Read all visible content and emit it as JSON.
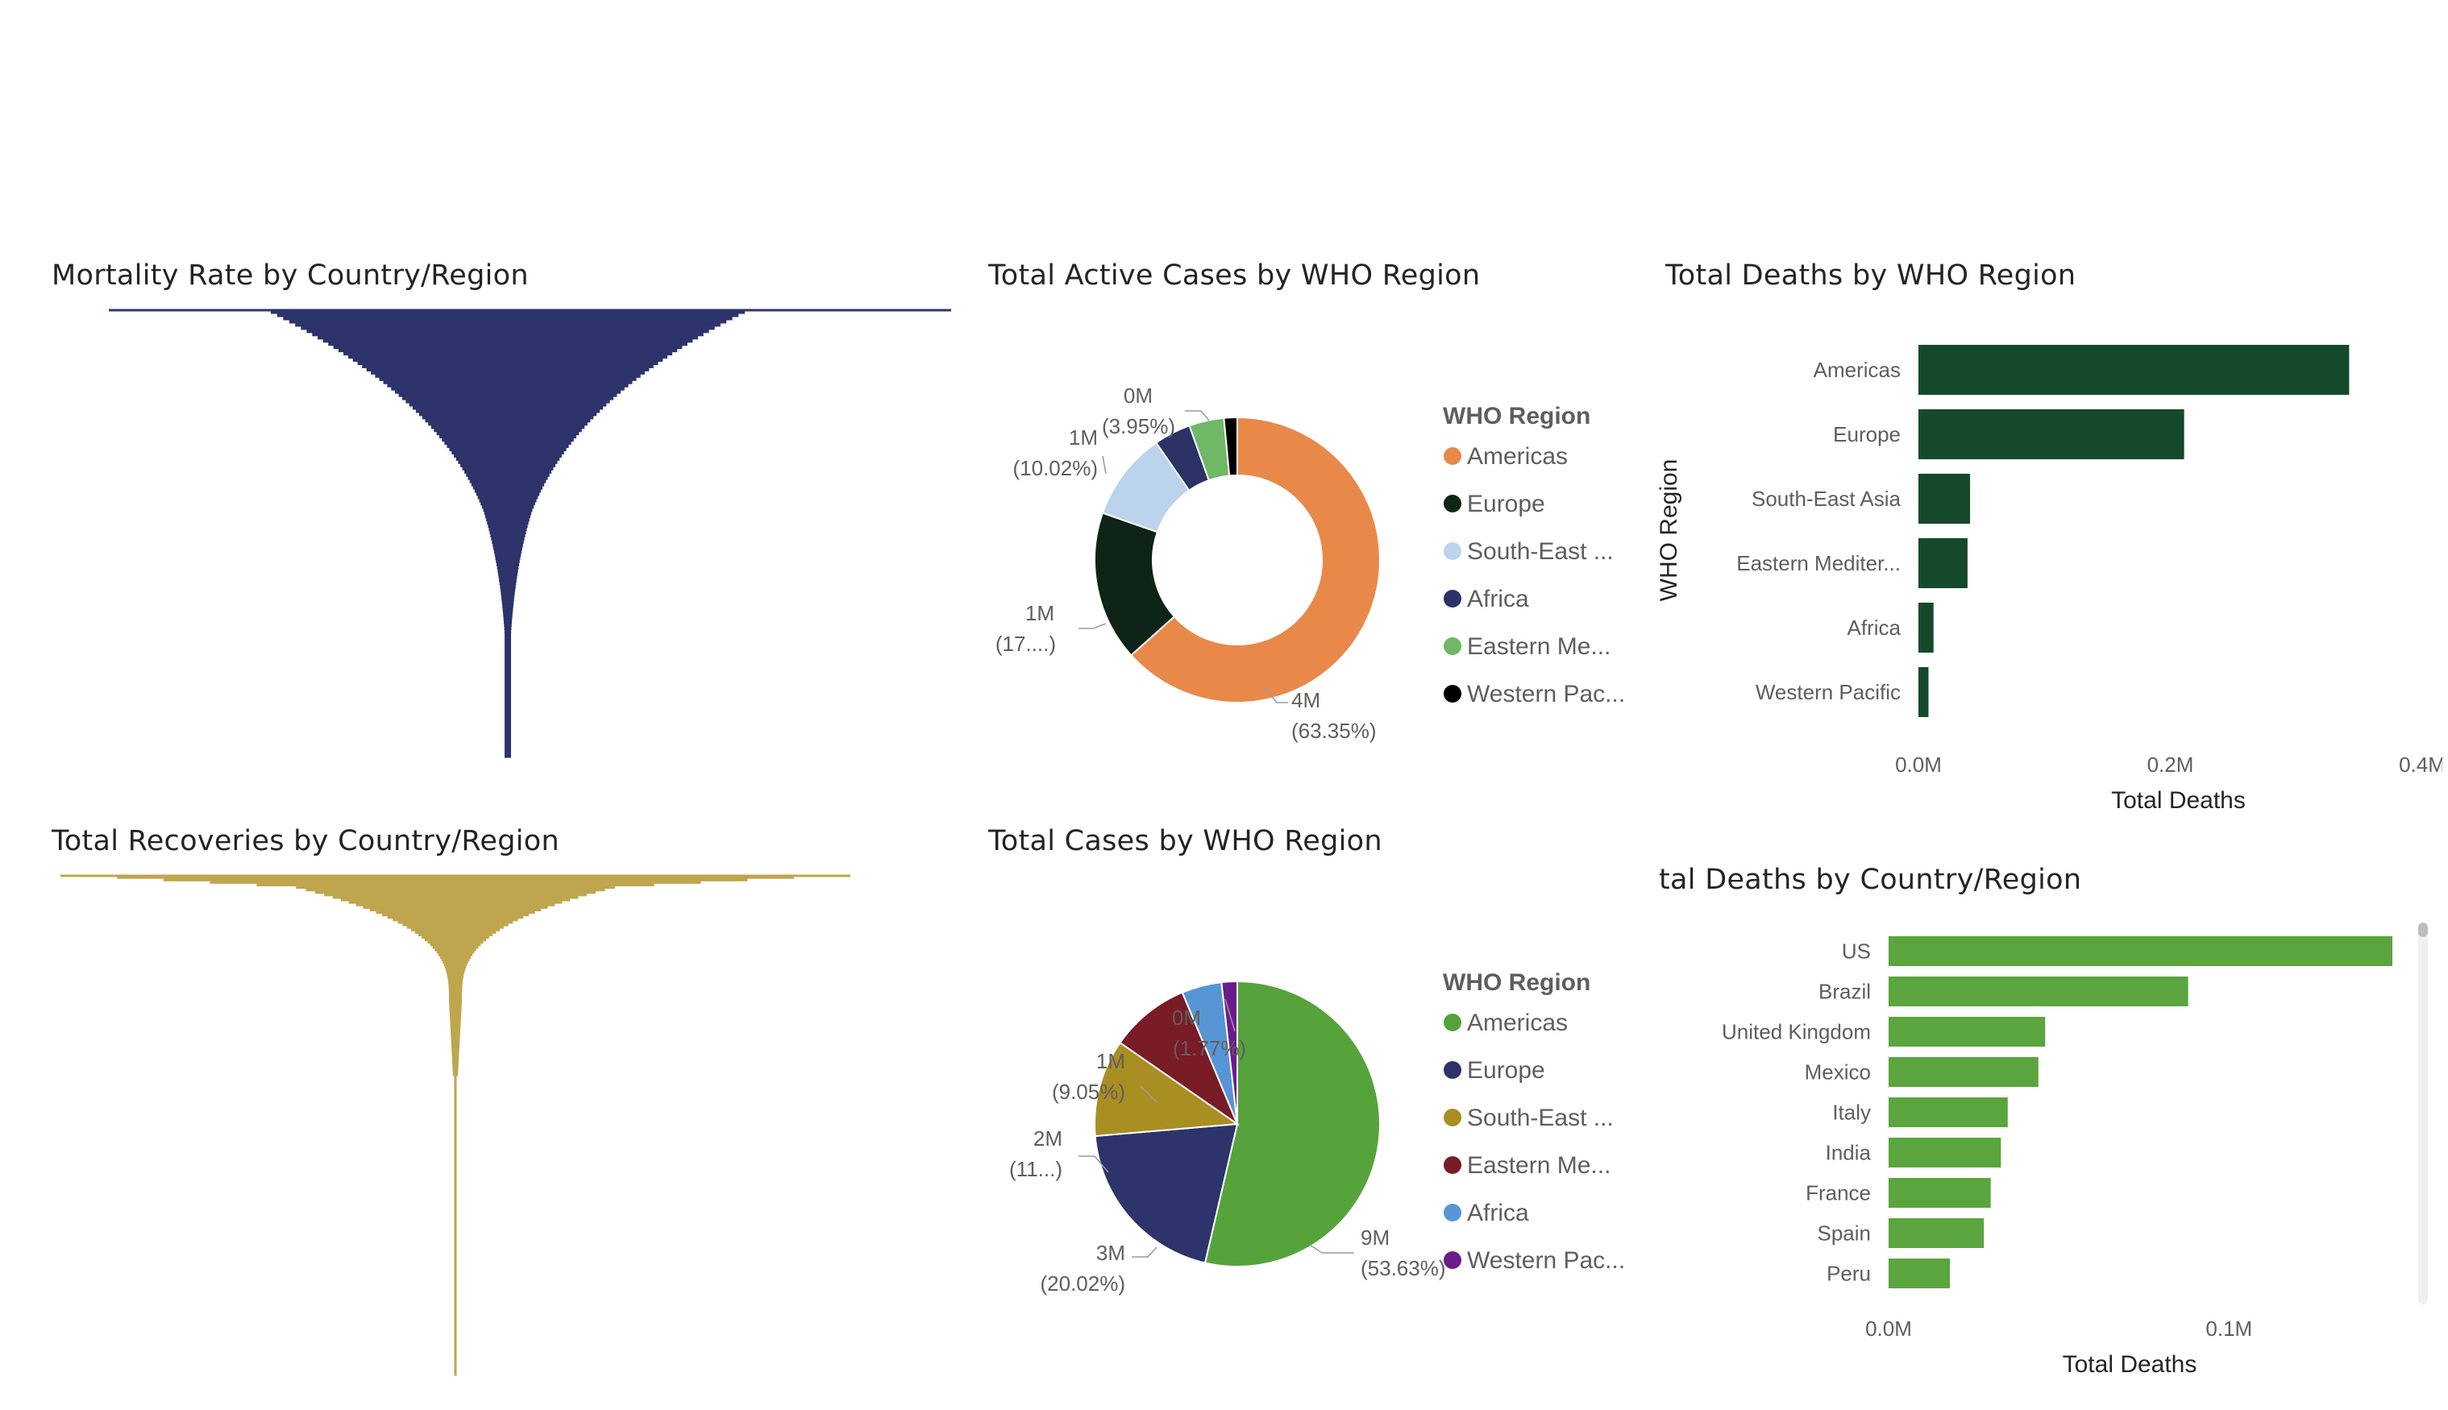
{
  "mortality": {
    "title": "Mortality Rate by Country/Region",
    "color": "#2d336b"
  },
  "recoveries": {
    "title": "Total Recoveries by Country/Region",
    "color": "#bfa64e"
  },
  "active_cases": {
    "title": "Total Active Cases by WHO Region",
    "legend_title": "WHO Region",
    "legend": [
      "Americas",
      "Europe",
      "South-East ...",
      "Africa",
      "Eastern Me...",
      "Western Pac..."
    ],
    "labels": [
      {
        "value": "4M",
        "pct": "(63.35%)"
      },
      {
        "value": "1M",
        "pct": "(17....)"
      },
      {
        "value": "1M",
        "pct": "(10.02%)"
      },
      {
        "value": "0M",
        "pct": "(3.95%)"
      }
    ]
  },
  "total_cases": {
    "title": "Total Cases by WHO Region",
    "legend_title": "WHO Region",
    "legend": [
      "Americas",
      "Europe",
      "South-East ...",
      "Eastern Me...",
      "Africa",
      "Western Pac..."
    ],
    "labels": [
      {
        "value": "9M",
        "pct": "(53.63%)"
      },
      {
        "value": "3M",
        "pct": "(20.02%)"
      },
      {
        "value": "2M",
        "pct": "(11...)"
      },
      {
        "value": "1M",
        "pct": "(9.05%)"
      },
      {
        "value": "0M",
        "pct": "(1.77%)"
      }
    ]
  },
  "deaths_region": {
    "title": "Total Deaths by WHO Region",
    "xlabel": "Total Deaths",
    "ylabel": "WHO Region",
    "ticks": [
      "0.0M",
      "0.2M",
      "0.4M"
    ],
    "categories": [
      "Americas",
      "Europe",
      "South-East Asia",
      "Eastern Mediter...",
      "Africa",
      "Western Pacific"
    ]
  },
  "deaths_country": {
    "title": "tal Deaths by Country/Region",
    "xlabel": "Total Deaths",
    "ticks": [
      "0.0M",
      "0.1M"
    ],
    "categories": [
      "US",
      "Brazil",
      "United Kingdom",
      "Mexico",
      "Italy",
      "India",
      "France",
      "Spain",
      "Peru"
    ]
  },
  "chart_data": [
    {
      "type": "area",
      "title": "Mortality Rate by Country/Region",
      "color": "#2d336b",
      "note_values": "relative mortality rate per country, sorted (funnel-shaped profile), 0-1 normalized",
      "values": [
        0.03,
        0.04,
        0.05,
        0.06,
        0.07,
        0.08,
        0.09,
        0.1,
        0.11,
        0.12,
        0.13,
        0.14,
        0.15,
        0.16,
        0.17,
        0.18,
        0.19,
        0.2,
        0.21,
        0.22,
        0.23,
        0.24,
        0.25,
        0.26,
        0.27,
        0.28,
        0.29,
        0.3,
        0.31,
        0.32,
        0.33,
        0.34,
        0.35,
        0.36,
        0.37,
        0.38,
        0.39,
        0.4,
        0.42,
        0.44,
        0.46,
        0.48,
        0.5,
        0.52,
        0.54,
        0.56,
        0.58,
        0.6,
        0.62,
        0.64,
        0.66,
        0.68,
        0.7,
        0.72,
        0.74,
        0.76,
        0.78,
        0.8,
        0.82,
        0.84,
        0.86,
        0.88,
        0.9,
        0.92,
        0.94,
        0.96,
        0.98,
        1.0
      ]
    },
    {
      "type": "area",
      "title": "Total Recoveries by Country/Region",
      "color": "#bfa64e",
      "values": [
        0.01,
        0.015,
        0.02,
        0.03,
        0.04,
        0.05,
        0.06,
        0.07,
        0.08,
        0.09,
        0.1,
        0.11,
        0.12,
        0.14,
        0.16,
        0.18,
        0.2,
        0.25,
        0.3,
        0.4,
        0.55,
        0.8,
        1.0
      ]
    },
    {
      "type": "pie",
      "title": "Total Active Cases by WHO Region",
      "donut": true,
      "categories": [
        "Americas",
        "Europe",
        "South-East Asia",
        "Africa",
        "Eastern Mediterranean",
        "Western Pacific"
      ],
      "values": [
        63.35,
        17.0,
        10.02,
        4.18,
        3.95,
        1.5
      ],
      "colors": [
        "#e8894a",
        "#0f2419",
        "#bcd3ec",
        "#2a3266",
        "#6fb866",
        "#000000"
      ]
    },
    {
      "type": "pie",
      "title": "Total Cases by WHO Region",
      "donut": false,
      "categories": [
        "Americas",
        "Europe",
        "South-East Asia",
        "Eastern Mediterranean",
        "Africa",
        "Western Pacific"
      ],
      "values": [
        53.63,
        20.02,
        11.0,
        9.05,
        4.53,
        1.77
      ],
      "colors": [
        "#56a33b",
        "#2d336b",
        "#a98e22",
        "#7a1b28",
        "#5796d4",
        "#6a1d8a"
      ]
    },
    {
      "type": "bar",
      "orientation": "horizontal",
      "title": "Total Deaths by WHO Region",
      "xlabel": "Total Deaths",
      "ylabel": "WHO Region",
      "categories": [
        "Americas",
        "Europe",
        "South-East Asia",
        "Eastern Mediterranean",
        "Africa",
        "Western Pacific"
      ],
      "values": [
        342000,
        211000,
        41000,
        39000,
        12000,
        8000
      ],
      "xlim": [
        0,
        400000
      ],
      "color": "#15492b"
    },
    {
      "type": "bar",
      "orientation": "horizontal",
      "title": "Total Deaths by Country/Region",
      "xlabel": "Total Deaths",
      "categories": [
        "US",
        "Brazil",
        "United Kingdom",
        "Mexico",
        "Italy",
        "India",
        "France",
        "Spain",
        "Peru"
      ],
      "values": [
        148000,
        88000,
        46000,
        44000,
        35000,
        33000,
        30000,
        28000,
        18000
      ],
      "xlim": [
        0,
        148000
      ],
      "color": "#5aa53e"
    }
  ]
}
